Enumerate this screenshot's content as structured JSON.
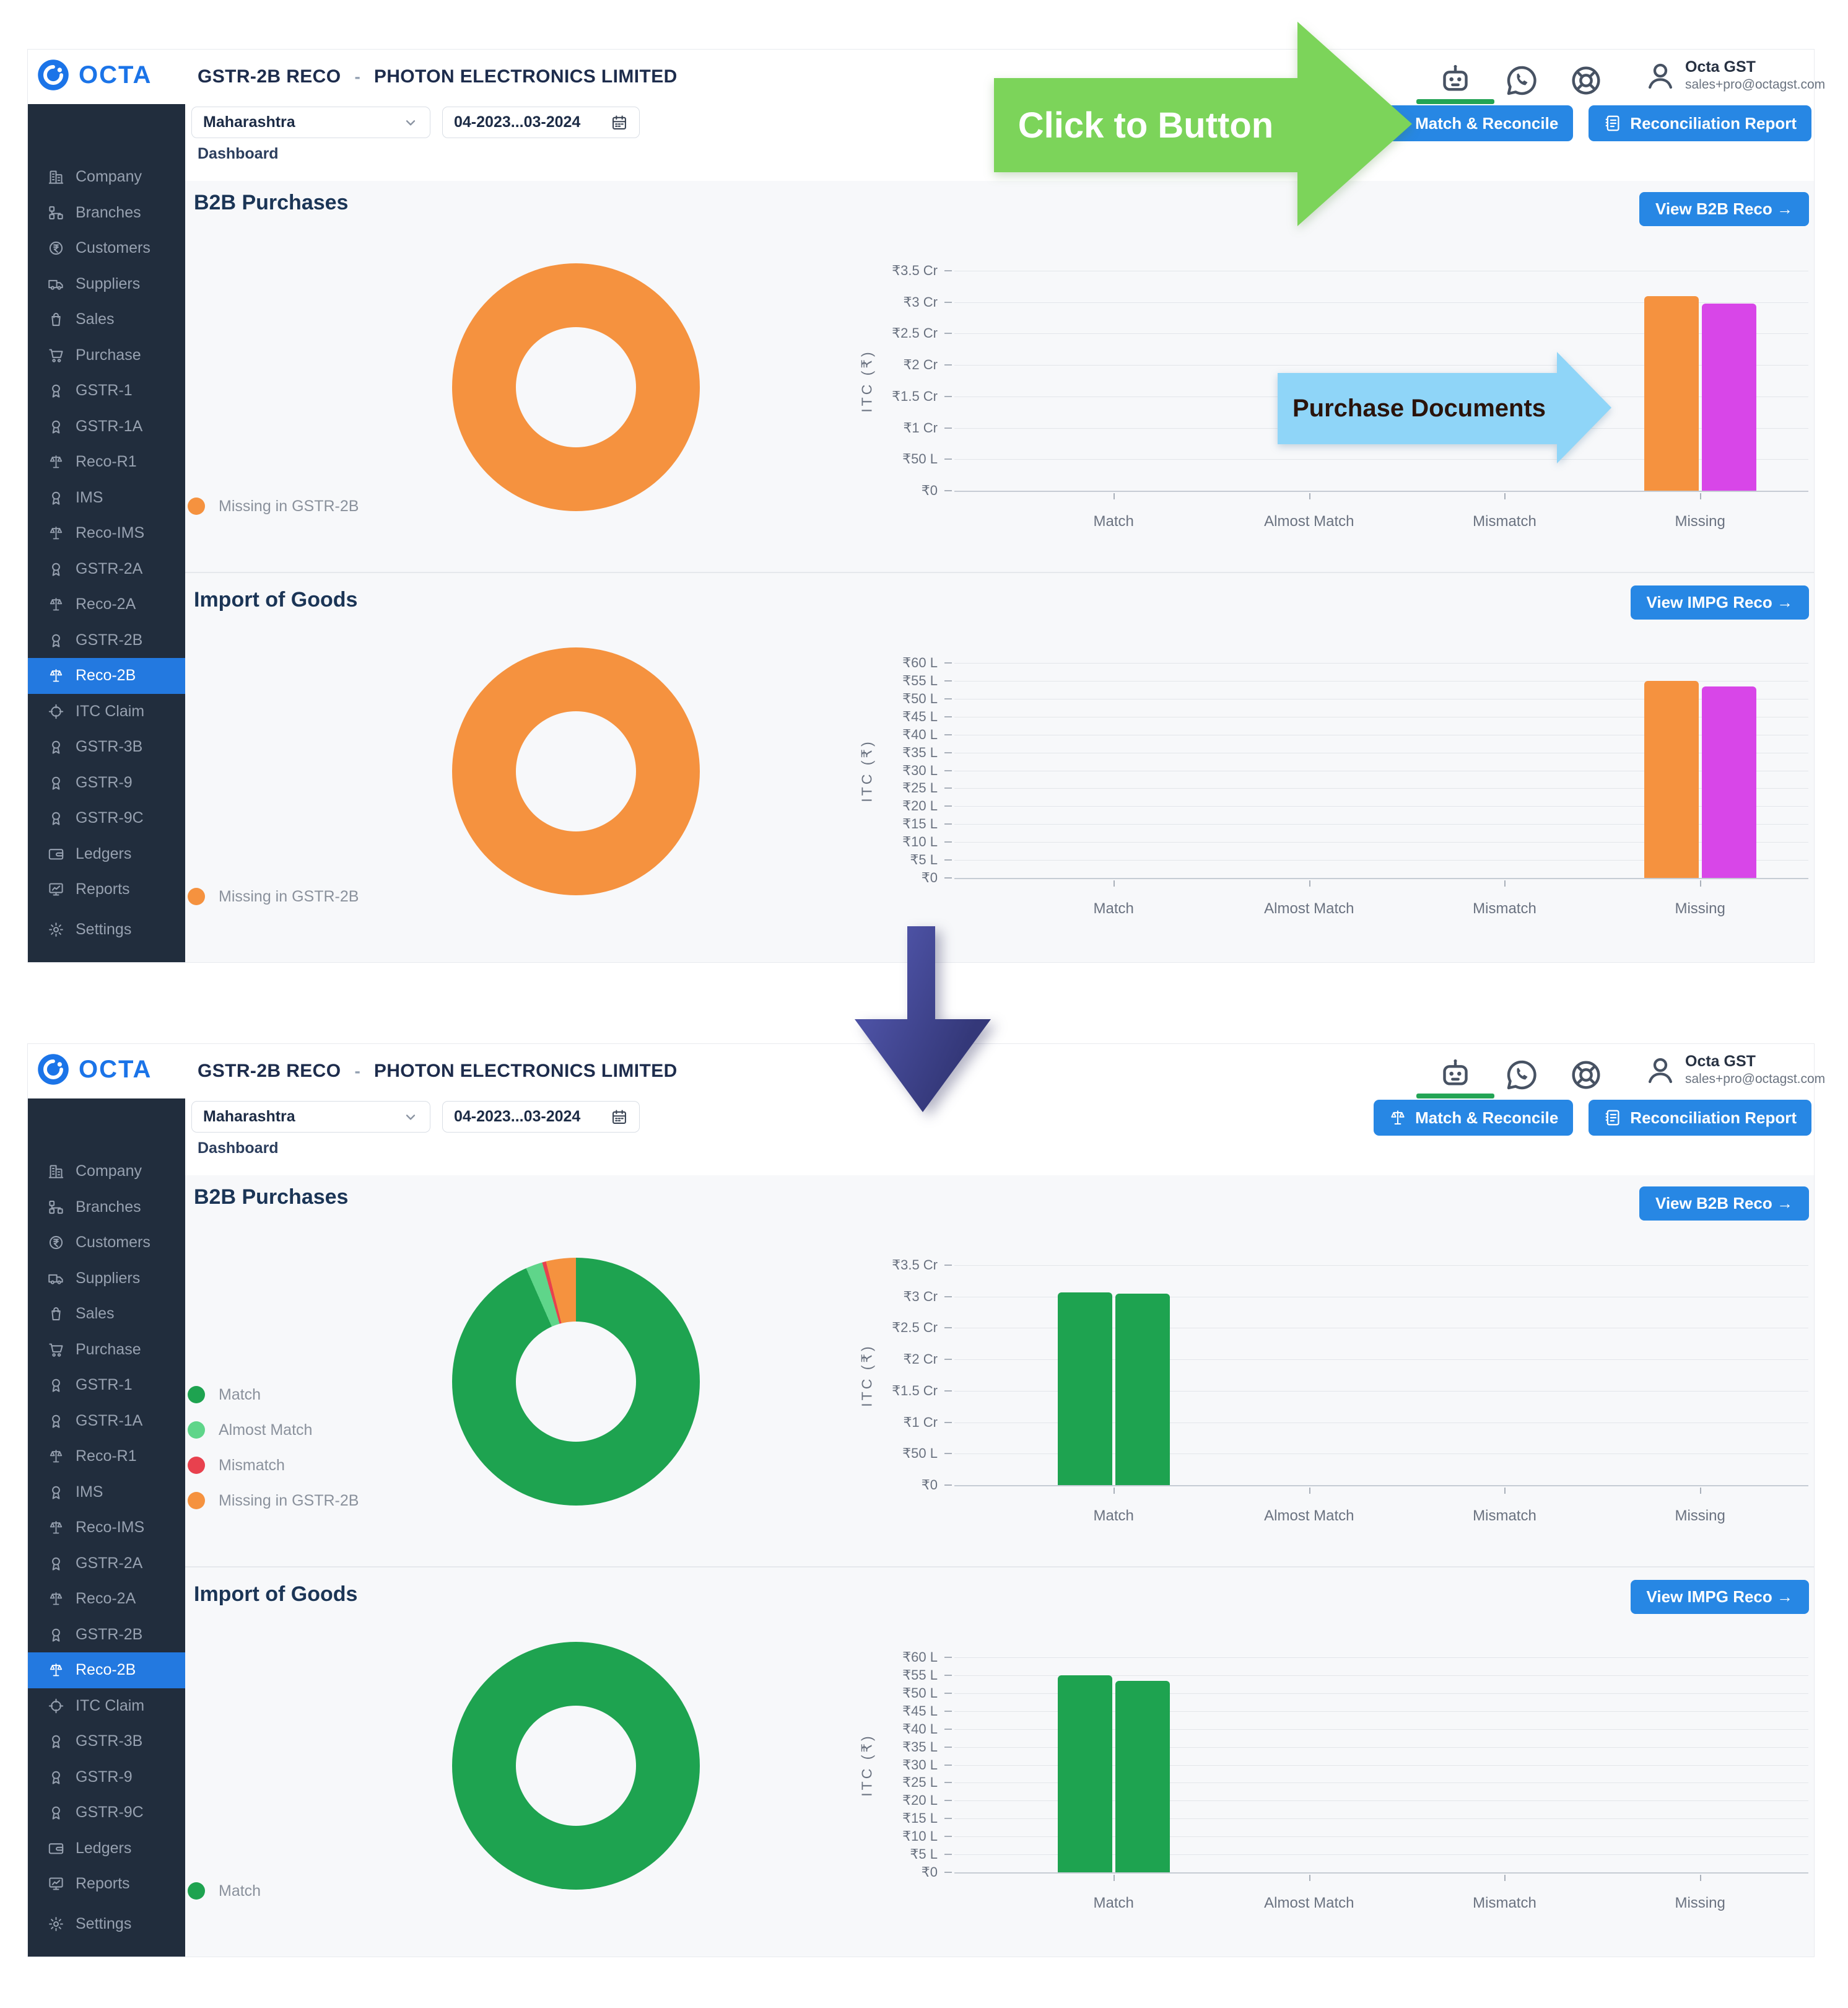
{
  "annotations": {
    "click_to_button": {
      "label": "Click to Button",
      "color": "#7cd45a"
    },
    "purchase_documents": {
      "label": "Purchase Documents",
      "color": "#8fd5f8"
    },
    "flow_arrow": {
      "shape": "down-arrow",
      "color": "#3d4190"
    }
  },
  "app": {
    "logo": "OCTA",
    "header": {
      "module": "GSTR-2B RECO",
      "separator": "-",
      "company": "PHOTON ELECTRONICS LIMITED",
      "icons": [
        "bot-icon",
        "whatsapp-icon",
        "help-icon"
      ],
      "user": {
        "name": "Octa GST",
        "email": "sales+pro@octagst.com"
      }
    },
    "toolbar": {
      "state_filter": "Maharashtra",
      "period": "04-2023...03-2024",
      "match_reconcile_label": "Match & Reconcile",
      "reconciliation_report_label": "Reconciliation Report"
    },
    "tab": "Dashboard",
    "sidebar": {
      "active": "Reco-2B",
      "items": [
        {
          "label": "Company",
          "icon": "building"
        },
        {
          "label": "Branches",
          "icon": "branches"
        },
        {
          "label": "Customers",
          "icon": "rupee"
        },
        {
          "label": "Suppliers",
          "icon": "truck"
        },
        {
          "label": "Sales",
          "icon": "bag"
        },
        {
          "label": "Purchase",
          "icon": "cart"
        },
        {
          "label": "GSTR-1",
          "icon": "award"
        },
        {
          "label": "GSTR-1A",
          "icon": "award"
        },
        {
          "label": "Reco-R1",
          "icon": "scales"
        },
        {
          "label": "IMS",
          "icon": "award"
        },
        {
          "label": "Reco-IMS",
          "icon": "scales"
        },
        {
          "label": "GSTR-2A",
          "icon": "award"
        },
        {
          "label": "Reco-2A",
          "icon": "scales"
        },
        {
          "label": "GSTR-2B",
          "icon": "award"
        },
        {
          "label": "Reco-2B",
          "icon": "scales"
        },
        {
          "label": "ITC Claim",
          "icon": "target"
        },
        {
          "label": "GSTR-3B",
          "icon": "award"
        },
        {
          "label": "GSTR-9",
          "icon": "award"
        },
        {
          "label": "GSTR-9C",
          "icon": "award"
        },
        {
          "label": "Ledgers",
          "icon": "wallet"
        },
        {
          "label": "Reports",
          "icon": "chart"
        }
      ],
      "settings": {
        "label": "Settings",
        "icon": "gear"
      }
    }
  },
  "sections": {
    "b2b": {
      "title": "B2B Purchases",
      "view_button": "View B2B Reco →"
    },
    "impg": {
      "title": "Import of Goods",
      "view_button": "View IMPG Reco →"
    }
  },
  "chart_data": {
    "before": {
      "b2b_donut": {
        "type": "pie",
        "slices": [
          {
            "label": "Missing in GSTR-2B",
            "pct": 100,
            "color": "#f5923f"
          }
        ]
      },
      "b2b_bar": {
        "type": "bar",
        "ylabel": "ITC (₹)",
        "categories": [
          "Match",
          "Almost Match",
          "Mismatch",
          "Missing"
        ],
        "y_ticks": [
          "₹3.5 Cr",
          "₹3 Cr",
          "₹2.5 Cr",
          "₹2 Cr",
          "₹1.5 Cr",
          "₹1 Cr",
          "₹50 L",
          "₹0"
        ],
        "y_top": 3.5,
        "unit": "Cr",
        "series": [
          {
            "color": "#f5923f",
            "values": [
              0,
              0,
              0,
              3.1
            ]
          },
          {
            "color": "#d846e8",
            "values": [
              0,
              0,
              0,
              2.98
            ]
          }
        ]
      },
      "impg_donut": {
        "type": "pie",
        "slices": [
          {
            "label": "Missing in GSTR-2B",
            "pct": 100,
            "color": "#f5923f"
          }
        ]
      },
      "impg_bar": {
        "type": "bar",
        "ylabel": "ITC (₹)",
        "categories": [
          "Match",
          "Almost Match",
          "Mismatch",
          "Missing"
        ],
        "y_ticks": [
          "₹60 L",
          "₹55 L",
          "₹50 L",
          "₹45 L",
          "₹40 L",
          "₹35 L",
          "₹30 L",
          "₹25 L",
          "₹20 L",
          "₹15 L",
          "₹10 L",
          "₹5 L",
          "₹0"
        ],
        "y_top": 60,
        "unit": "L",
        "series": [
          {
            "color": "#f5923f",
            "values": [
              0,
              0,
              0,
              55
            ]
          },
          {
            "color": "#d846e8",
            "values": [
              0,
              0,
              0,
              53.5
            ]
          }
        ]
      }
    },
    "after": {
      "b2b_donut": {
        "type": "pie",
        "slices": [
          {
            "label": "Match",
            "pct": 93.4,
            "color": "#1ea350"
          },
          {
            "label": "Almost Match",
            "pct": 2.2,
            "color": "#5fd58a"
          },
          {
            "label": "Mismatch",
            "pct": 0.5,
            "color": "#e8414e"
          },
          {
            "label": "Missing in GSTR-2B",
            "pct": 3.9,
            "color": "#f5923f"
          }
        ]
      },
      "b2b_bar": {
        "type": "bar",
        "ylabel": "ITC (₹)",
        "categories": [
          "Match",
          "Almost Match",
          "Mismatch",
          "Missing"
        ],
        "y_ticks": [
          "₹3.5 Cr",
          "₹3 Cr",
          "₹2.5 Cr",
          "₹2 Cr",
          "₹1.5 Cr",
          "₹1 Cr",
          "₹50 L",
          "₹0"
        ],
        "y_top": 3.5,
        "unit": "Cr",
        "series": [
          {
            "color": "#1ea350",
            "values": [
              3.07,
              0,
              0,
              0
            ]
          },
          {
            "color": "#1ea350",
            "values": [
              3.05,
              0,
              0,
              0
            ]
          }
        ]
      },
      "impg_donut": {
        "type": "pie",
        "slices": [
          {
            "label": "Match",
            "pct": 100,
            "color": "#1ea350"
          }
        ]
      },
      "impg_bar": {
        "type": "bar",
        "ylabel": "ITC (₹)",
        "categories": [
          "Match",
          "Almost Match",
          "Mismatch",
          "Missing"
        ],
        "y_ticks": [
          "₹60 L",
          "₹55 L",
          "₹50 L",
          "₹45 L",
          "₹40 L",
          "₹35 L",
          "₹30 L",
          "₹25 L",
          "₹20 L",
          "₹15 L",
          "₹10 L",
          "₹5 L",
          "₹0"
        ],
        "y_top": 60,
        "unit": "L",
        "series": [
          {
            "color": "#1ea350",
            "values": [
              55,
              0,
              0,
              0
            ]
          },
          {
            "color": "#1ea350",
            "values": [
              53.5,
              0,
              0,
              0
            ]
          }
        ]
      }
    }
  }
}
